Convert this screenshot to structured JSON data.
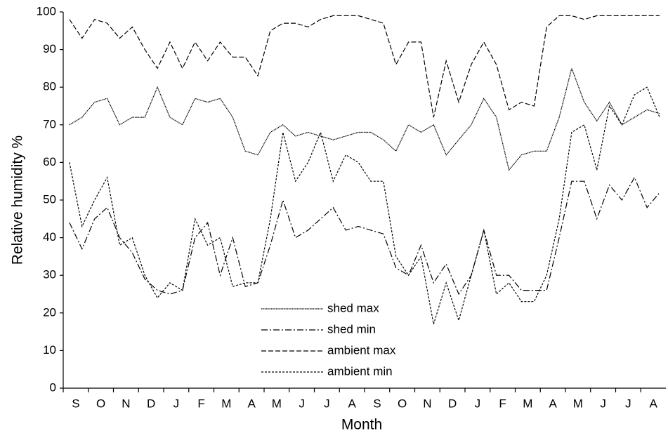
{
  "chart_data": {
    "type": "line",
    "x_label": "Month",
    "y_label": "Relative humidity %",
    "categories": [
      "S",
      null,
      "O",
      null,
      "N",
      null,
      "D",
      null,
      "J",
      null,
      "F",
      null,
      "M",
      null,
      "A",
      null,
      "M",
      null,
      "J",
      null,
      "J",
      null,
      "A",
      null,
      "S",
      null,
      "O",
      null,
      "N",
      null,
      "D",
      null,
      "J",
      null,
      "F",
      null,
      "M",
      null,
      "A",
      null,
      "M",
      null,
      "J",
      null,
      "J",
      null,
      "A",
      null
    ],
    "series": [
      {
        "name": "shed max",
        "color": "#000000",
        "dash": "1.5,0.8",
        "values": [
          70,
          72,
          76,
          77,
          70,
          72,
          72,
          80,
          72,
          70,
          77,
          76,
          77,
          72,
          63,
          62,
          68,
          70,
          67,
          68,
          67,
          66,
          67,
          68,
          68,
          66,
          63,
          70,
          68,
          70,
          62,
          66,
          70,
          77,
          72,
          58,
          62,
          63,
          63,
          72,
          85,
          76,
          71,
          76,
          70,
          72,
          74,
          73
        ]
      },
      {
        "name": "shed min",
        "color": "#000000",
        "dash": "9,3,2,3",
        "values": [
          44,
          37,
          45,
          48,
          40,
          36,
          29,
          26,
          25,
          26,
          40,
          44,
          30,
          40,
          27,
          28,
          38,
          50,
          40,
          42,
          45,
          48,
          42,
          43,
          42,
          41,
          32,
          30,
          38,
          28,
          33,
          25,
          30,
          42,
          30,
          30,
          26,
          26,
          26,
          40,
          55,
          55,
          45,
          54,
          50,
          56,
          48,
          52
        ]
      },
      {
        "name": "ambient max",
        "color": "#000000",
        "dash": "7,3",
        "values": [
          98,
          93,
          98,
          97,
          93,
          96,
          90,
          85,
          92,
          85,
          92,
          87,
          92,
          88,
          88,
          83,
          95,
          97,
          97,
          96,
          98,
          99,
          99,
          99,
          98,
          97,
          86,
          92,
          92,
          72,
          87,
          76,
          86,
          92,
          86,
          74,
          76,
          75,
          96,
          99,
          99,
          98,
          99,
          99,
          99,
          99,
          99,
          99
        ]
      },
      {
        "name": "ambient min",
        "color": "#000000",
        "dash": "3,2",
        "values": [
          60,
          43,
          50,
          56,
          38,
          40,
          30,
          24,
          28,
          26,
          45,
          38,
          40,
          27,
          28,
          28,
          45,
          68,
          55,
          60,
          68,
          55,
          62,
          60,
          55,
          55,
          35,
          30,
          35,
          17,
          28,
          18,
          30,
          42,
          25,
          28,
          23,
          23,
          30,
          45,
          68,
          70,
          58,
          75,
          70,
          78,
          80,
          72
        ]
      }
    ],
    "ylim": [
      0,
      100
    ],
    "yticks": [
      0,
      10,
      20,
      30,
      40,
      50,
      60,
      70,
      80,
      90,
      100
    ],
    "grid": false,
    "legend": "lower center"
  }
}
